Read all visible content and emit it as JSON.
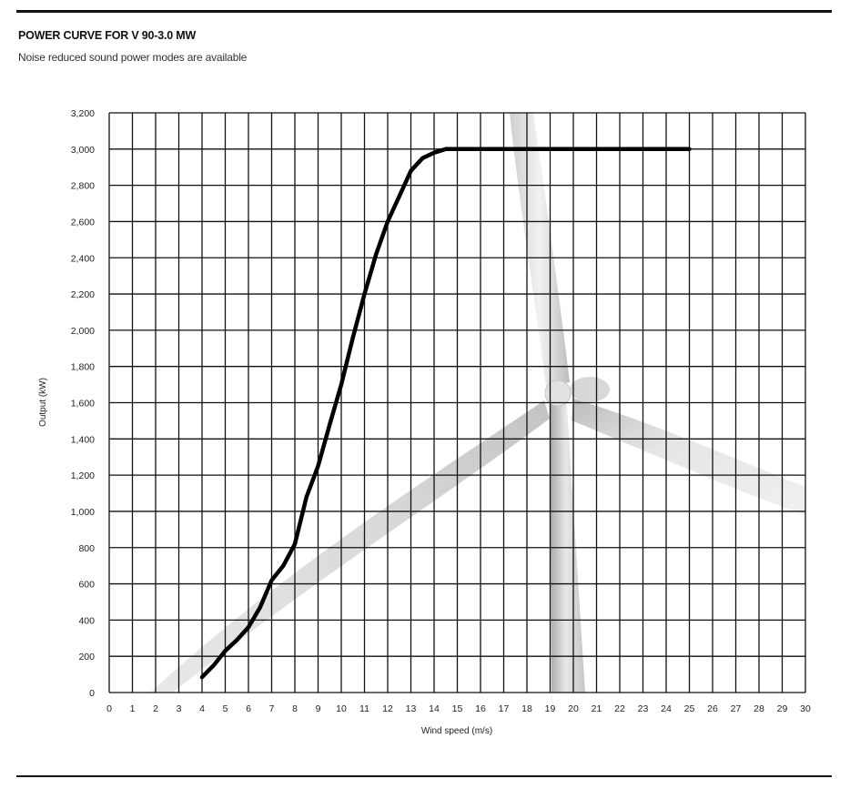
{
  "chart_data": {
    "type": "line",
    "title": "POWER CURVE FOR V 90-3.0 MW",
    "subtitle": "Noise reduced sound power modes are available",
    "xlabel": "Wind speed (m/s)",
    "ylabel": "Output (kW)",
    "xlim": [
      0,
      30
    ],
    "ylim": [
      0,
      3200
    ],
    "x_ticks": [
      0,
      1,
      2,
      3,
      4,
      5,
      6,
      7,
      8,
      9,
      10,
      11,
      12,
      13,
      14,
      15,
      16,
      17,
      18,
      19,
      20,
      21,
      22,
      23,
      24,
      25,
      26,
      27,
      28,
      29,
      30
    ],
    "y_ticks": [
      0,
      200,
      400,
      600,
      800,
      1000,
      1200,
      1400,
      1600,
      1800,
      2000,
      2200,
      2400,
      2600,
      2800,
      3000,
      3200
    ],
    "y_tick_labels": [
      "0",
      "200",
      "400",
      "600",
      "800",
      "1,000",
      "1,200",
      "1,400",
      "1,600",
      "1,800",
      "2,000",
      "2,200",
      "2,400",
      "2,600",
      "2,800",
      "3,000",
      "3,200"
    ],
    "grid": true,
    "series": [
      {
        "x": [
          4,
          4.5,
          5,
          5.5,
          6,
          6.5,
          7,
          7.5,
          8,
          8.5,
          9,
          9.5,
          10,
          10.5,
          11,
          11.5,
          12,
          12.5,
          13,
          13.5,
          14,
          14.5,
          15,
          16,
          17,
          18,
          19,
          20,
          21,
          22,
          23,
          24,
          25
        ],
        "y": [
          85,
          150,
          230,
          290,
          360,
          470,
          620,
          700,
          820,
          1080,
          1250,
          1480,
          1700,
          1960,
          2200,
          2420,
          2600,
          2740,
          2880,
          2950,
          2980,
          3000,
          3000,
          3000,
          3000,
          3000,
          3000,
          3000,
          3000,
          3000,
          3000,
          3000,
          3000
        ],
        "color": "#000000"
      }
    ],
    "background_image": "wind-turbine-photo"
  }
}
